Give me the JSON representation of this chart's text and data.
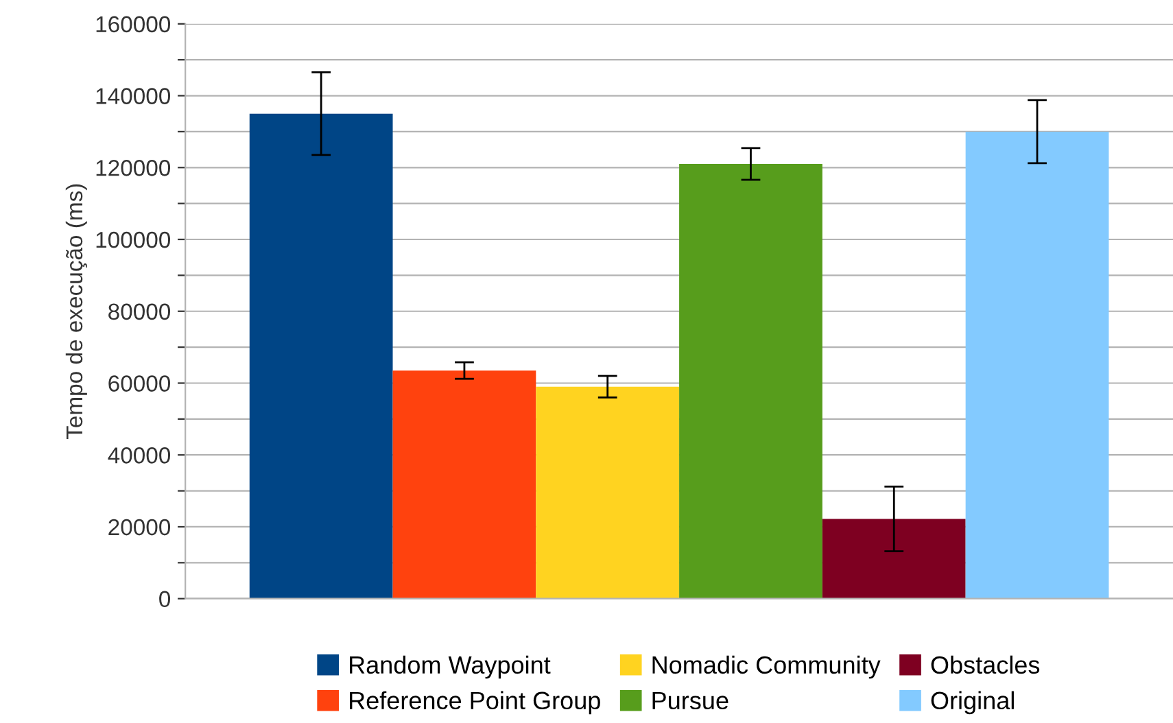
{
  "chart_data": {
    "type": "bar",
    "ylabel": "Tempo de execução (ms)",
    "categories": [
      null
    ],
    "series": [
      {
        "name": "Random Waypoint",
        "color": "#004586",
        "values": [
          135000
        ],
        "errors": [
          11500
        ]
      },
      {
        "name": "Reference Point Group",
        "color": "#ff420e",
        "values": [
          63500
        ],
        "errors": [
          2300
        ]
      },
      {
        "name": "Nomadic Community",
        "color": "#ffd320",
        "values": [
          59000
        ],
        "errors": [
          3000
        ]
      },
      {
        "name": "Pursue",
        "color": "#579d1c",
        "values": [
          121000
        ],
        "errors": [
          4400
        ]
      },
      {
        "name": "Obstacles",
        "color": "#7e0021",
        "values": [
          22200
        ],
        "errors": [
          9000
        ]
      },
      {
        "name": "Original",
        "color": "#83caff",
        "values": [
          130000
        ],
        "errors": [
          8800
        ]
      }
    ],
    "ylim": [
      0,
      160000
    ],
    "yticks": [
      0,
      {
        "value": 10000,
        "label": null
      },
      20000,
      {
        "value": 30000,
        "label": null
      },
      40000,
      {
        "value": 50000,
        "label": null
      },
      60000,
      {
        "value": 70000,
        "label": null
      },
      80000,
      {
        "value": 90000,
        "label": null
      },
      100000,
      {
        "value": 110000,
        "label": null
      },
      120000,
      {
        "value": 130000,
        "label": null
      },
      140000,
      {
        "value": 150000,
        "label": null
      },
      160000
    ],
    "grid": "y",
    "legend": "bottom"
  }
}
